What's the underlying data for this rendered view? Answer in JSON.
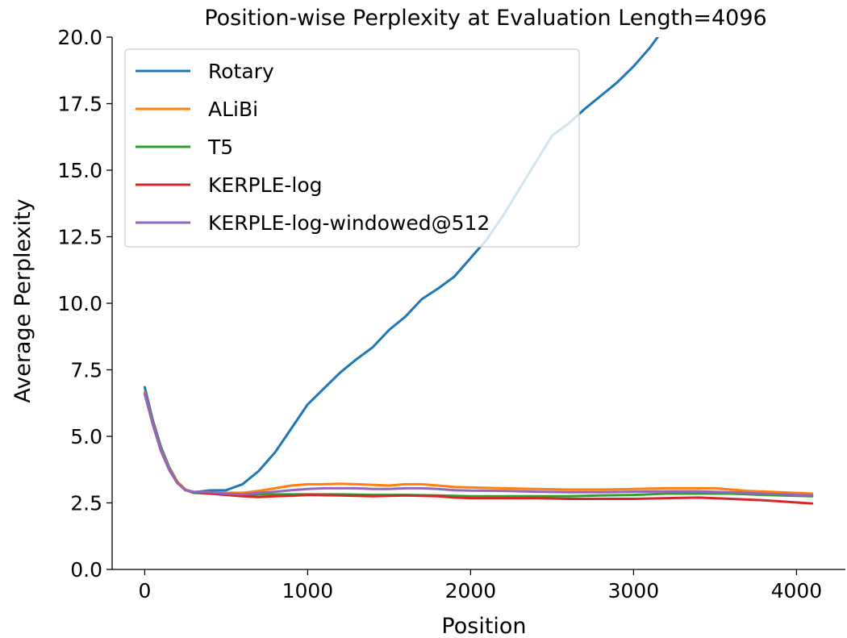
{
  "chart_data": {
    "type": "line",
    "title": "Position-wise Perplexity at Evaluation Length=4096",
    "xlabel": "Position",
    "ylabel": "Average Perplexity",
    "xlim": [
      -200,
      4300
    ],
    "ylim": [
      0,
      20
    ],
    "xticks": [
      0,
      1000,
      2000,
      3000,
      4000
    ],
    "xtick_labels": [
      "0",
      "1000",
      "2000",
      "3000",
      "4000"
    ],
    "yticks": [
      0,
      2.5,
      5,
      7.5,
      10,
      12.5,
      15,
      17.5,
      20
    ],
    "ytick_labels": [
      "0.0",
      "2.5",
      "5.0",
      "7.5",
      "10.0",
      "12.5",
      "15.0",
      "17.5",
      "20.0"
    ],
    "grid": false,
    "legend_position": "upper-left",
    "series": [
      {
        "name": "Rotary",
        "color": "#1f77b4",
        "points": [
          [
            0,
            6.85
          ],
          [
            50,
            5.6
          ],
          [
            100,
            4.6
          ],
          [
            150,
            3.85
          ],
          [
            200,
            3.3
          ],
          [
            250,
            3.0
          ],
          [
            300,
            2.9
          ],
          [
            400,
            2.97
          ],
          [
            500,
            2.98
          ],
          [
            600,
            3.2
          ],
          [
            700,
            3.7
          ],
          [
            800,
            4.4
          ],
          [
            900,
            5.3
          ],
          [
            1000,
            6.2
          ],
          [
            1100,
            6.8
          ],
          [
            1200,
            7.4
          ],
          [
            1300,
            7.9
          ],
          [
            1400,
            8.35
          ],
          [
            1500,
            9.0
          ],
          [
            1600,
            9.5
          ],
          [
            1700,
            10.15
          ],
          [
            1800,
            10.55
          ],
          [
            1900,
            11.0
          ],
          [
            2000,
            11.7
          ],
          [
            2100,
            12.4
          ],
          [
            2200,
            13.3
          ],
          [
            2300,
            14.3
          ],
          [
            2400,
            15.3
          ],
          [
            2500,
            16.3
          ],
          [
            2600,
            16.75
          ],
          [
            2700,
            17.3
          ],
          [
            2800,
            17.8
          ],
          [
            2900,
            18.3
          ],
          [
            3000,
            18.9
          ],
          [
            3100,
            19.6
          ],
          [
            3160,
            20.1
          ]
        ]
      },
      {
        "name": "ALiBi",
        "color": "#ff7f0e",
        "points": [
          [
            0,
            6.65
          ],
          [
            50,
            5.5
          ],
          [
            100,
            4.5
          ],
          [
            150,
            3.8
          ],
          [
            200,
            3.3
          ],
          [
            250,
            3.0
          ],
          [
            300,
            2.88
          ],
          [
            400,
            2.9
          ],
          [
            500,
            2.88
          ],
          [
            600,
            2.88
          ],
          [
            700,
            2.95
          ],
          [
            800,
            3.05
          ],
          [
            900,
            3.15
          ],
          [
            1000,
            3.2
          ],
          [
            1100,
            3.2
          ],
          [
            1200,
            3.22
          ],
          [
            1300,
            3.2
          ],
          [
            1400,
            3.18
          ],
          [
            1500,
            3.15
          ],
          [
            1600,
            3.2
          ],
          [
            1700,
            3.2
          ],
          [
            1800,
            3.15
          ],
          [
            1900,
            3.1
          ],
          [
            2000,
            3.08
          ],
          [
            2200,
            3.05
          ],
          [
            2400,
            3.02
          ],
          [
            2600,
            3.0
          ],
          [
            2800,
            3.0
          ],
          [
            3000,
            3.02
          ],
          [
            3200,
            3.05
          ],
          [
            3400,
            3.05
          ],
          [
            3500,
            3.05
          ],
          [
            3700,
            2.95
          ],
          [
            3900,
            2.9
          ],
          [
            4096,
            2.85
          ]
        ]
      },
      {
        "name": "T5",
        "color": "#2ca02c",
        "points": [
          [
            0,
            6.6
          ],
          [
            50,
            5.45
          ],
          [
            100,
            4.45
          ],
          [
            150,
            3.75
          ],
          [
            200,
            3.25
          ],
          [
            250,
            2.98
          ],
          [
            300,
            2.88
          ],
          [
            400,
            2.85
          ],
          [
            500,
            2.82
          ],
          [
            600,
            2.8
          ],
          [
            700,
            2.82
          ],
          [
            800,
            2.82
          ],
          [
            900,
            2.82
          ],
          [
            1000,
            2.82
          ],
          [
            1200,
            2.82
          ],
          [
            1400,
            2.8
          ],
          [
            1600,
            2.8
          ],
          [
            1800,
            2.78
          ],
          [
            2000,
            2.75
          ],
          [
            2200,
            2.75
          ],
          [
            2400,
            2.75
          ],
          [
            2600,
            2.75
          ],
          [
            2800,
            2.78
          ],
          [
            3000,
            2.8
          ],
          [
            3200,
            2.85
          ],
          [
            3400,
            2.85
          ],
          [
            3600,
            2.85
          ],
          [
            3800,
            2.8
          ],
          [
            4096,
            2.75
          ]
        ]
      },
      {
        "name": "KERPLE-log",
        "color": "#d62728",
        "points": [
          [
            0,
            6.6
          ],
          [
            50,
            5.45
          ],
          [
            100,
            4.45
          ],
          [
            150,
            3.75
          ],
          [
            200,
            3.25
          ],
          [
            250,
            2.98
          ],
          [
            300,
            2.9
          ],
          [
            400,
            2.85
          ],
          [
            500,
            2.8
          ],
          [
            600,
            2.75
          ],
          [
            700,
            2.72
          ],
          [
            800,
            2.75
          ],
          [
            900,
            2.77
          ],
          [
            1000,
            2.8
          ],
          [
            1200,
            2.78
          ],
          [
            1400,
            2.75
          ],
          [
            1600,
            2.78
          ],
          [
            1800,
            2.75
          ],
          [
            1900,
            2.7
          ],
          [
            2000,
            2.68
          ],
          [
            2200,
            2.68
          ],
          [
            2400,
            2.68
          ],
          [
            2600,
            2.65
          ],
          [
            2800,
            2.65
          ],
          [
            3000,
            2.65
          ],
          [
            3200,
            2.68
          ],
          [
            3400,
            2.7
          ],
          [
            3600,
            2.65
          ],
          [
            3800,
            2.6
          ],
          [
            4096,
            2.48
          ]
        ]
      },
      {
        "name": "KERPLE-log-windowed@512",
        "color": "#9467bd",
        "points": [
          [
            0,
            6.6
          ],
          [
            50,
            5.45
          ],
          [
            100,
            4.45
          ],
          [
            150,
            3.75
          ],
          [
            200,
            3.25
          ],
          [
            250,
            2.98
          ],
          [
            300,
            2.92
          ],
          [
            400,
            2.9
          ],
          [
            500,
            2.85
          ],
          [
            600,
            2.82
          ],
          [
            700,
            2.88
          ],
          [
            800,
            2.92
          ],
          [
            900,
            2.98
          ],
          [
            1000,
            3.02
          ],
          [
            1100,
            3.05
          ],
          [
            1200,
            3.05
          ],
          [
            1300,
            3.05
          ],
          [
            1400,
            3.02
          ],
          [
            1500,
            3.02
          ],
          [
            1600,
            3.05
          ],
          [
            1700,
            3.05
          ],
          [
            1800,
            3.02
          ],
          [
            1900,
            2.98
          ],
          [
            2000,
            2.96
          ],
          [
            2200,
            2.95
          ],
          [
            2400,
            2.92
          ],
          [
            2600,
            2.9
          ],
          [
            2800,
            2.9
          ],
          [
            3000,
            2.92
          ],
          [
            3200,
            2.93
          ],
          [
            3400,
            2.93
          ],
          [
            3600,
            2.9
          ],
          [
            3800,
            2.85
          ],
          [
            4096,
            2.78
          ]
        ]
      }
    ]
  }
}
